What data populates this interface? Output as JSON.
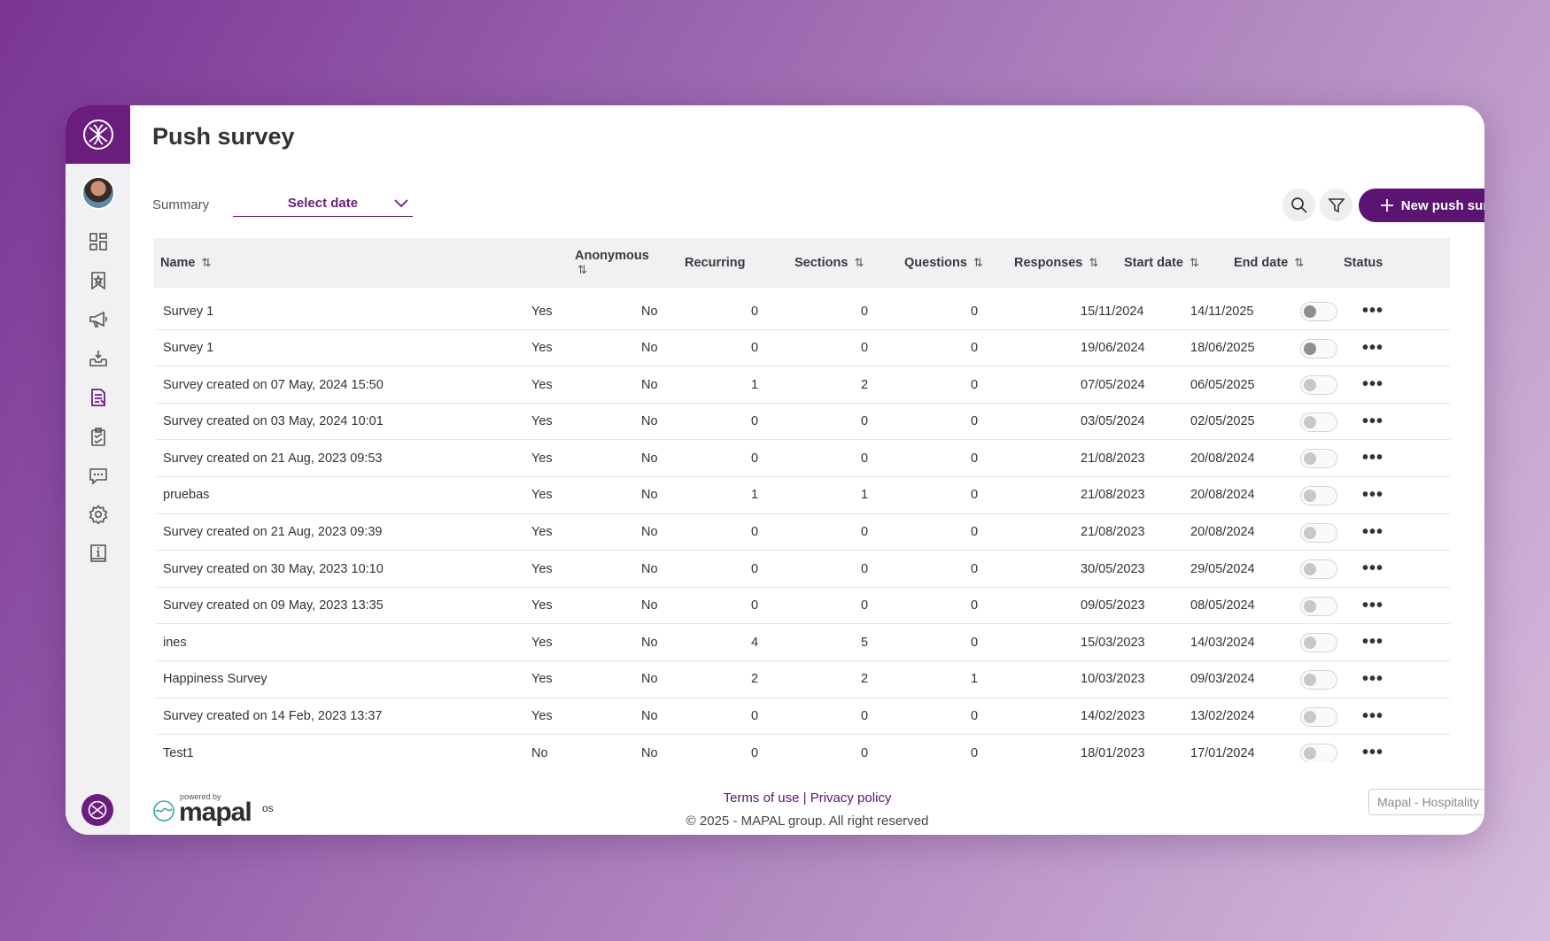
{
  "page": {
    "title": "Push survey"
  },
  "filters": {
    "summary_label": "Summary",
    "date_select": "Select date"
  },
  "toolbar": {
    "new_button": "New push survey"
  },
  "columns": [
    {
      "key": "name",
      "label": "Name",
      "sortable": true
    },
    {
      "key": "anonymous",
      "label": "Anonymous",
      "sortable": true
    },
    {
      "key": "recurring",
      "label": "Recurring",
      "sortable": false
    },
    {
      "key": "sections",
      "label": "Sections",
      "sortable": true
    },
    {
      "key": "questions",
      "label": "Questions",
      "sortable": true
    },
    {
      "key": "responses",
      "label": "Responses",
      "sortable": true
    },
    {
      "key": "start_date",
      "label": "Start date",
      "sortable": true
    },
    {
      "key": "end_date",
      "label": "End date",
      "sortable": true
    },
    {
      "key": "status",
      "label": "Status",
      "sortable": false
    }
  ],
  "rows": [
    {
      "name": "Survey 1",
      "anonymous": "Yes",
      "recurring": "No",
      "sections": "0",
      "questions": "0",
      "responses": "0",
      "start_date": "15/11/2024",
      "end_date": "14/11/2025",
      "status": "off-dark"
    },
    {
      "name": "Survey 1",
      "anonymous": "Yes",
      "recurring": "No",
      "sections": "0",
      "questions": "0",
      "responses": "0",
      "start_date": "19/06/2024",
      "end_date": "18/06/2025",
      "status": "off-dark"
    },
    {
      "name": "Survey created on 07 May, 2024 15:50",
      "anonymous": "Yes",
      "recurring": "No",
      "sections": "1",
      "questions": "2",
      "responses": "0",
      "start_date": "07/05/2024",
      "end_date": "06/05/2025",
      "status": "off"
    },
    {
      "name": "Survey created on 03 May, 2024 10:01",
      "anonymous": "Yes",
      "recurring": "No",
      "sections": "0",
      "questions": "0",
      "responses": "0",
      "start_date": "03/05/2024",
      "end_date": "02/05/2025",
      "status": "off"
    },
    {
      "name": "Survey created on 21 Aug, 2023 09:53",
      "anonymous": "Yes",
      "recurring": "No",
      "sections": "0",
      "questions": "0",
      "responses": "0",
      "start_date": "21/08/2023",
      "end_date": "20/08/2024",
      "status": "off"
    },
    {
      "name": "pruebas",
      "anonymous": "Yes",
      "recurring": "No",
      "sections": "1",
      "questions": "1",
      "responses": "0",
      "start_date": "21/08/2023",
      "end_date": "20/08/2024",
      "status": "off"
    },
    {
      "name": "Survey created on 21 Aug, 2023 09:39",
      "anonymous": "Yes",
      "recurring": "No",
      "sections": "0",
      "questions": "0",
      "responses": "0",
      "start_date": "21/08/2023",
      "end_date": "20/08/2024",
      "status": "off"
    },
    {
      "name": "Survey created on 30 May, 2023 10:10",
      "anonymous": "Yes",
      "recurring": "No",
      "sections": "0",
      "questions": "0",
      "responses": "0",
      "start_date": "30/05/2023",
      "end_date": "29/05/2024",
      "status": "off"
    },
    {
      "name": "Survey created on 09 May, 2023 13:35",
      "anonymous": "Yes",
      "recurring": "No",
      "sections": "0",
      "questions": "0",
      "responses": "0",
      "start_date": "09/05/2023",
      "end_date": "08/05/2024",
      "status": "off"
    },
    {
      "name": "ines",
      "anonymous": "Yes",
      "recurring": "No",
      "sections": "4",
      "questions": "5",
      "responses": "0",
      "start_date": "15/03/2023",
      "end_date": "14/03/2024",
      "status": "off"
    },
    {
      "name": "Happiness Survey",
      "anonymous": "Yes",
      "recurring": "No",
      "sections": "2",
      "questions": "2",
      "responses": "1",
      "start_date": "10/03/2023",
      "end_date": "09/03/2024",
      "status": "off"
    },
    {
      "name": "Survey created on 14 Feb, 2023 13:37",
      "anonymous": "Yes",
      "recurring": "No",
      "sections": "0",
      "questions": "0",
      "responses": "0",
      "start_date": "14/02/2023",
      "end_date": "13/02/2024",
      "status": "off"
    },
    {
      "name": "Test1",
      "anonymous": "No",
      "recurring": "No",
      "sections": "0",
      "questions": "0",
      "responses": "0",
      "start_date": "18/01/2023",
      "end_date": "17/01/2024",
      "status": "off"
    }
  ],
  "footer": {
    "powered_by": "powered by",
    "brand": "mapal",
    "brand_suffix": "os",
    "terms": "Terms of use",
    "separator": " | ",
    "privacy": "Privacy policy",
    "copyright": "© 2025 - MAPAL group. All right reserved",
    "company_select": "Mapal - Hospitality"
  },
  "colors": {
    "brand": "#6b1d7e",
    "primary_button": "#5b1471"
  }
}
